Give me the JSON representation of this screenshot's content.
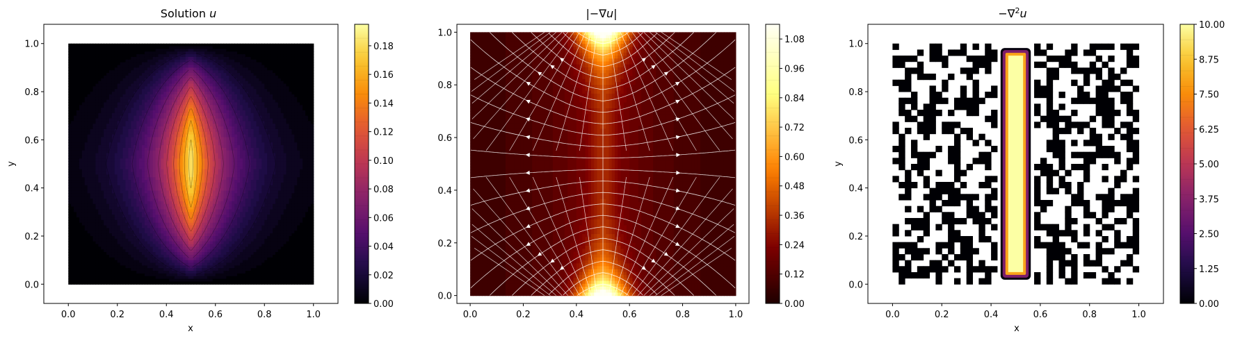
{
  "chart_data": [
    {
      "type": "heatmap",
      "title": "Solution u",
      "title_plain": "Solution ",
      "title_var": "u",
      "xlabel": "x",
      "ylabel": "y",
      "xlim": [
        -0.1,
        1.1
      ],
      "ylim": [
        -0.08,
        1.08
      ],
      "xticks": [
        "0.0",
        "0.2",
        "0.4",
        "0.6",
        "0.8",
        "1.0"
      ],
      "yticks": [
        "0.0",
        "0.2",
        "0.4",
        "0.6",
        "0.8",
        "1.0"
      ],
      "domain": {
        "x": [
          0,
          1
        ],
        "y": [
          0,
          1
        ]
      },
      "colormap": "inferno",
      "colorbar": {
        "range": [
          0,
          0.195
        ],
        "ticks": [
          "0.00",
          "0.02",
          "0.04",
          "0.06",
          "0.08",
          "0.10",
          "0.12",
          "0.14",
          "0.16",
          "0.18"
        ]
      },
      "peak": {
        "x": 0.5,
        "y": 0.5,
        "value": 0.19
      },
      "contour_lines": true
    },
    {
      "type": "heatmap",
      "title": "|−∇u|",
      "title_plain": "|−∇",
      "title_var": "u",
      "title_after": "|",
      "xlabel": "",
      "ylabel": "",
      "xlim": [
        -0.05,
        1.05
      ],
      "ylim": [
        -0.03,
        1.03
      ],
      "xticks": [
        "0.0",
        "0.2",
        "0.4",
        "0.6",
        "0.8",
        "1.0"
      ],
      "yticks": [
        "0.0",
        "0.2",
        "0.4",
        "0.6",
        "0.8",
        "1.0"
      ],
      "domain": {
        "x": [
          0,
          1
        ],
        "y": [
          0,
          1
        ]
      },
      "colormap": "afmhot",
      "colorbar": {
        "range": [
          0,
          1.14
        ],
        "ticks": [
          "0.00",
          "0.12",
          "0.24",
          "0.36",
          "0.48",
          "0.60",
          "0.72",
          "0.84",
          "0.96",
          "1.08"
        ]
      },
      "streamlines": true,
      "streamline_color": "#ffffff"
    },
    {
      "type": "heatmap",
      "title": "−∇²u",
      "title_plain": "−∇",
      "title_sup": "2",
      "title_var": "u",
      "xlabel": "x",
      "ylabel": "y",
      "xlim": [
        -0.1,
        1.1
      ],
      "ylim": [
        -0.08,
        1.08
      ],
      "xticks": [
        "0.0",
        "0.2",
        "0.4",
        "0.6",
        "0.8",
        "1.0"
      ],
      "yticks": [
        "0.0",
        "0.2",
        "0.4",
        "0.6",
        "0.8",
        "1.0"
      ],
      "domain": {
        "x": [
          0,
          1
        ],
        "y": [
          0,
          1
        ]
      },
      "colormap": "inferno",
      "colorbar": {
        "range": [
          0,
          10
        ],
        "ticks": [
          "0.00",
          "1.25",
          "2.50",
          "3.75",
          "5.00",
          "6.25",
          "7.50",
          "8.75",
          "10.00"
        ]
      },
      "bright_band": {
        "x": [
          0.45,
          0.55
        ],
        "y": [
          0.03,
          0.97
        ],
        "value": 10
      },
      "speckle_value": 0
    }
  ]
}
